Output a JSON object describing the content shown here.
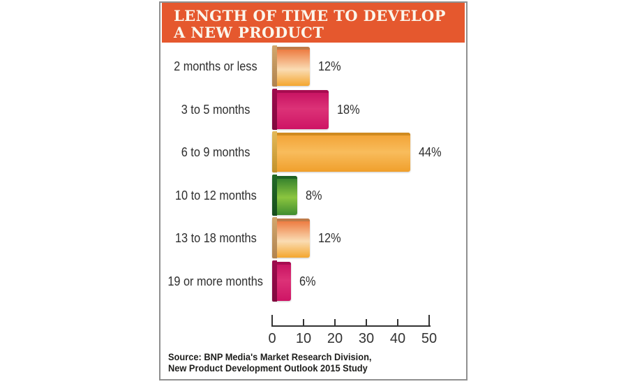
{
  "title": {
    "line1": "LENGTH OF TIME TO DEVELOP",
    "line2": "A NEW PRODUCT"
  },
  "source": {
    "line1": "Source: BNP Media's Market Research Division,",
    "line2": "New Product Development Outlook 2015 Study"
  },
  "chart_data": {
    "type": "bar",
    "orientation": "horizontal",
    "title": "LENGTH OF TIME TO DEVELOP A NEW PRODUCT",
    "categories": [
      "2 months or less",
      "3 to 5 months",
      "6 to 9 months",
      "10 to 12 months",
      "13 to 18 months",
      "19 or more months"
    ],
    "values": [
      12,
      18,
      44,
      8,
      12,
      6
    ],
    "value_labels": [
      "12%",
      "18%",
      "44%",
      "8%",
      "12%",
      "6%"
    ],
    "bar_color_keys": [
      "orange",
      "magenta",
      "amber",
      "green",
      "orange",
      "magenta"
    ],
    "xlabel": "",
    "ylabel": "",
    "xlim": [
      0,
      50
    ],
    "x_ticks": [
      0,
      10,
      20,
      30,
      40,
      50
    ],
    "grid": false,
    "legend": false
  },
  "palette": {
    "orange": {
      "face_top": "#EB6F33",
      "face_mid": "#FADCB3",
      "face_bottom": "#F4A62F",
      "mid_stop": "58%",
      "top_edge": "#BE7B48",
      "spine_top": "#D2A76D",
      "spine_bottom": "#B08350"
    },
    "magenta": {
      "face_top": "#C50F5F",
      "face_mid": "#DC3277",
      "face_bottom": "#CE1465",
      "mid_stop": "48%",
      "top_edge": "#A70C50",
      "spine_top": "#9E0B4D",
      "spine_bottom": "#7F0A3E"
    },
    "amber": {
      "face_top": "#F2A132",
      "face_mid": "#F8BC5C",
      "face_bottom": "#F0A02C",
      "mid_stop": "50%",
      "top_edge": "#D08A1F",
      "spine_top": "#E3B959",
      "spine_bottom": "#C2912B"
    },
    "green": {
      "face_top": "#2C7A2B",
      "face_mid": "#8BC53F",
      "face_bottom": "#3F8D2F",
      "mid_stop": "55%",
      "top_edge": "#1E6124",
      "spine_top": "#226A27",
      "spine_bottom": "#174D1C"
    }
  },
  "colors": {
    "header_bg": "#E5582E",
    "header_text": "#FBF6EC",
    "panel_border": "#8F8F8F",
    "label_text": "#2E2E2E",
    "axis_text": "#333333",
    "source_text": "#1D1D1B",
    "background": "#FFFFFF"
  }
}
